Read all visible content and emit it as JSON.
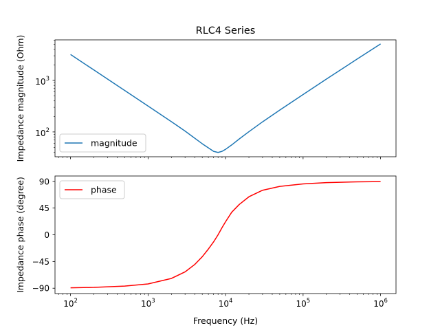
{
  "chart_data": [
    {
      "type": "line",
      "title": "RLC4 Series",
      "xlabel": "",
      "ylabel": "Impedance magnitude (Ohm)",
      "xscale": "log",
      "yscale": "log",
      "xlim": [
        63,
        1580000
      ],
      "ylim": [
        33,
        6100
      ],
      "x_ticks": [
        100,
        1000,
        10000,
        100000,
        1000000
      ],
      "x_ticklabels_visible": false,
      "y_ticks": [
        100,
        1000
      ],
      "y_tick_labels": [
        {
          "base": "10",
          "exp": "2"
        },
        {
          "base": "10",
          "exp": "3"
        }
      ],
      "grid": false,
      "legend": {
        "location": "lower-left",
        "entries": [
          "magnitude"
        ]
      },
      "series": [
        {
          "name": "magnitude",
          "color": "#1f77b4",
          "x": [
            100,
            200,
            500,
            1000,
            2000,
            3000,
            5000,
            7000,
            8000,
            9000,
            10000,
            12000,
            15000,
            20000,
            30000,
            50000,
            100000,
            200000,
            500000,
            1000000
          ],
          "y": [
            3180,
            1590,
            636,
            318,
            158,
            104,
            59,
            42,
            40,
            42,
            46,
            56,
            73,
            101,
            157,
            265,
            531,
            1060,
            2600,
            5100
          ]
        }
      ]
    },
    {
      "type": "line",
      "title": "",
      "xlabel": "Frequency (Hz)",
      "ylabel": "Impedance phase (degree)",
      "xscale": "log",
      "yscale": "linear",
      "xlim": [
        63,
        1580000
      ],
      "ylim": [
        -99,
        99
      ],
      "x_ticks": [
        100,
        1000,
        10000,
        100000,
        1000000
      ],
      "x_tick_labels": [
        {
          "base": "10",
          "exp": "2"
        },
        {
          "base": "10",
          "exp": "3"
        },
        {
          "base": "10",
          "exp": "4"
        },
        {
          "base": "10",
          "exp": "5"
        },
        {
          "base": "10",
          "exp": "6"
        }
      ],
      "y_ticks": [
        -90,
        -45,
        0,
        45,
        90
      ],
      "y_tick_labels": [
        "−90",
        "−45",
        "0",
        "45",
        "90"
      ],
      "grid": false,
      "legend": {
        "location": "upper-left",
        "entries": [
          "phase"
        ]
      },
      "series": [
        {
          "name": "phase",
          "color": "#ff0000",
          "x": [
            100,
            200,
            500,
            1000,
            2000,
            3000,
            4000,
            5000,
            6000,
            7000,
            8000,
            9000,
            10000,
            12000,
            15000,
            20000,
            30000,
            50000,
            100000,
            200000,
            500000,
            1000000
          ],
          "y": [
            -89.3,
            -88.6,
            -86.4,
            -82.8,
            -73.5,
            -62.5,
            -50,
            -37,
            -24,
            -12,
            0,
            12,
            22,
            38,
            51,
            64,
            75,
            81.5,
            85.7,
            87.8,
            89.2,
            89.6
          ]
        }
      ]
    }
  ]
}
